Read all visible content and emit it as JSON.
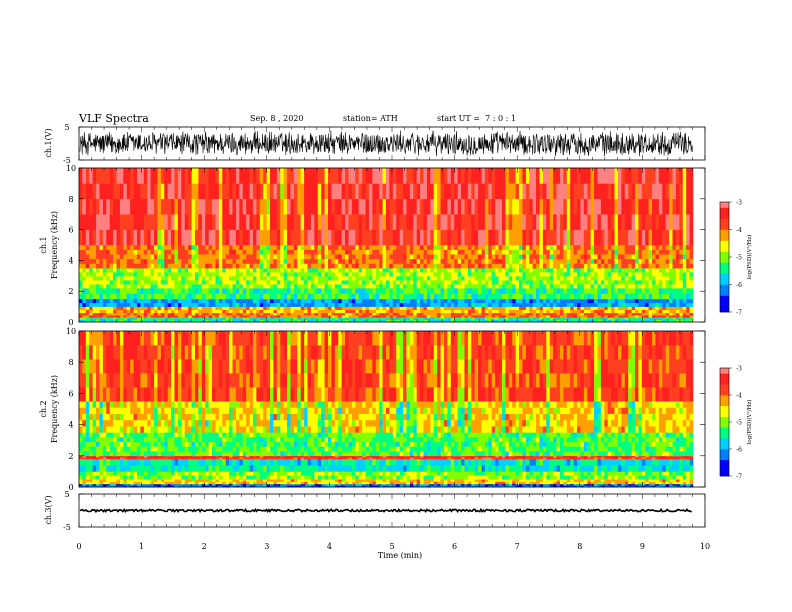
{
  "header": {
    "title": "VLF Spectra",
    "date": "Sep. 8 , 2020",
    "station": "station= ATH",
    "start": "start UT =  7 : 0 : 1"
  },
  "panels": {
    "ch1_wave_label": "ch.1(V)",
    "ch1_spec_label": "ch.1",
    "ch2_spec_label": "ch.2",
    "ch3_wave_label": "ch.3(V)",
    "spec_ylabel": "Frequency (kHz)"
  },
  "colorbar": {
    "label": "log(PSD)(V²/Hz)",
    "ticks": [
      "-3",
      "-4",
      "-5",
      "-6",
      "-7"
    ],
    "colors": [
      "#000080",
      "#0000ff",
      "#00bfff",
      "#00ff80",
      "#80ff00",
      "#ffff00",
      "#ffa500",
      "#ff3020",
      "#ff8080",
      "#ffffff"
    ]
  },
  "chart_data": [
    {
      "type": "line",
      "name": "ch.1(V)",
      "ylim": [
        -5,
        5
      ],
      "y_ticks": [
        "5",
        "-5"
      ],
      "xlim": [
        0,
        10
      ],
      "description_values": {
        "amplitude_range": [
          -3,
          4
        ]
      }
    },
    {
      "type": "heatmap",
      "name": "ch.1",
      "xlabel": "Time (min)",
      "ylabel": "Frequency (kHz)",
      "xlim": [
        0,
        9.85
      ],
      "ylim": [
        0,
        10
      ],
      "y_ticks": [
        "0",
        "2",
        "4",
        "6",
        "8",
        "10"
      ],
      "zlim": [
        -7,
        -3
      ],
      "bands": [
        {
          "fmin": 0,
          "fmax": 0.3,
          "logpsd": -5.5
        },
        {
          "fmin": 0.3,
          "fmax": 0.6,
          "logpsd": -4.0
        },
        {
          "fmin": 0.6,
          "fmax": 1.0,
          "logpsd": -4.3
        },
        {
          "fmin": 1.0,
          "fmax": 1.5,
          "logpsd": -6.0
        },
        {
          "fmin": 1.5,
          "fmax": 2.2,
          "logpsd": -5.3
        },
        {
          "fmin": 2.2,
          "fmax": 3.5,
          "logpsd": -4.9
        },
        {
          "fmin": 3.5,
          "fmax": 5.0,
          "logpsd": -4.0
        },
        {
          "fmin": 5.0,
          "fmax": 10.0,
          "logpsd": -3.4
        }
      ]
    },
    {
      "type": "heatmap",
      "name": "ch.2",
      "xlabel": "Time (min)",
      "ylabel": "Frequency (kHz)",
      "xlim": [
        0,
        9.85
      ],
      "ylim": [
        0,
        10
      ],
      "y_ticks": [
        "0",
        "2",
        "4",
        "6",
        "8",
        "10"
      ],
      "zlim": [
        -7,
        -3
      ],
      "bands": [
        {
          "fmin": 0,
          "fmax": 0.2,
          "logpsd": -6.2
        },
        {
          "fmin": 0.2,
          "fmax": 0.5,
          "logpsd": -4.4
        },
        {
          "fmin": 0.5,
          "fmax": 1.0,
          "logpsd": -5.0
        },
        {
          "fmin": 1.0,
          "fmax": 1.8,
          "logpsd": -5.6
        },
        {
          "fmin": 1.8,
          "fmax": 2.0,
          "logpsd": -3.6
        },
        {
          "fmin": 2.0,
          "fmax": 3.5,
          "logpsd": -5.2
        },
        {
          "fmin": 3.5,
          "fmax": 5.5,
          "logpsd": -4.4
        },
        {
          "fmin": 5.5,
          "fmax": 10.0,
          "logpsd": -3.7
        }
      ]
    },
    {
      "type": "line",
      "name": "ch.3(V)",
      "ylim": [
        -5,
        5
      ],
      "y_ticks": [
        "5",
        "-5"
      ],
      "xlim": [
        0,
        10
      ],
      "xlabel": "Time (min)",
      "x_ticks": [
        "0",
        "1",
        "2",
        "3",
        "4",
        "5",
        "6",
        "7",
        "8",
        "9",
        "10"
      ],
      "description_values": {
        "amplitude_range": [
          -0.3,
          0.3
        ]
      }
    }
  ]
}
